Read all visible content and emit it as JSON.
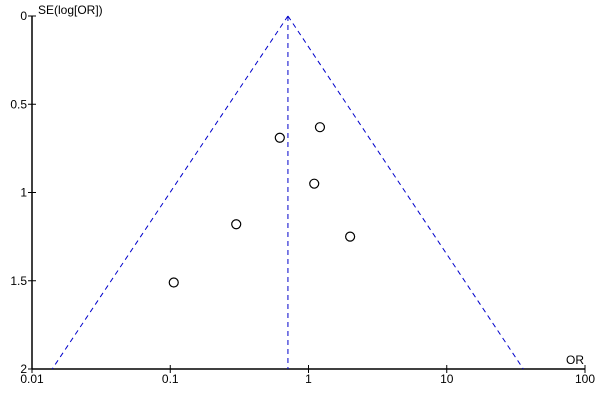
{
  "chart_data": {
    "type": "scatter",
    "subtype": "funnel plot",
    "xlabel": "OR",
    "ylabel": "SE(log[OR])",
    "x_scale": "log",
    "xlim": [
      0.01,
      100
    ],
    "ylim": [
      0,
      2
    ],
    "y_inverted": true,
    "x_ticks": [
      "0.01",
      "0.1",
      "1",
      "10",
      "100"
    ],
    "y_ticks": [
      "0",
      "0.5",
      "1",
      "1.5",
      "2"
    ],
    "grid": false,
    "pooled_or": 0.71,
    "funnel_limits_at_se2": [
      0.014,
      35.8
    ],
    "points": [
      {
        "or": 0.62,
        "se": 0.69
      },
      {
        "or": 1.21,
        "se": 0.63
      },
      {
        "or": 1.1,
        "se": 0.95
      },
      {
        "or": 0.3,
        "se": 1.18
      },
      {
        "or": 2.0,
        "se": 1.25
      },
      {
        "or": 0.106,
        "se": 1.51
      }
    ],
    "colors": {
      "funnel": "#0000cc",
      "points": "#000000",
      "axes": "#000000"
    }
  }
}
